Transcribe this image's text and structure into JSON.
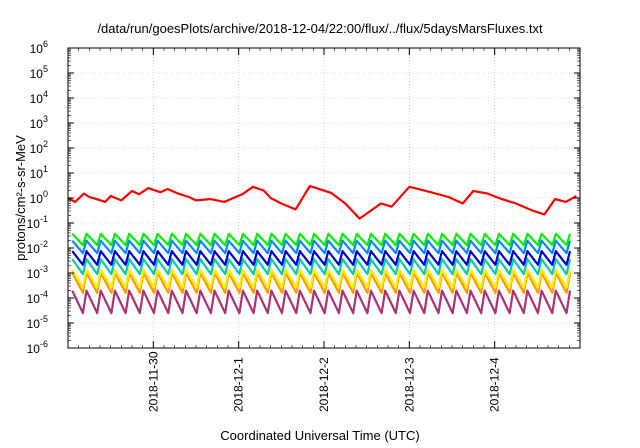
{
  "chart_data": {
    "type": "line",
    "title": "/data/run/goesPlots/archive/2018-12-04/22:00/flux/../flux/5daysMarsFluxes.txt",
    "xlabel": "Coordinated Universal Time (UTC)",
    "ylabel": "protons/cm²-s-sr-MeV",
    "y_scale": "log",
    "ylim": [
      1e-06,
      1000000.0
    ],
    "xlim": [
      "2018-11-29 00:00",
      "2018-12-05 00:00"
    ],
    "x_ticks": [
      "2018-11-30",
      "2018-12-1",
      "2018-12-2",
      "2018-12-3",
      "2018-12-4"
    ],
    "y_ticks": [
      {
        "base": "10",
        "exp": "-6"
      },
      {
        "base": "10",
        "exp": "-5"
      },
      {
        "base": "10",
        "exp": "-4"
      },
      {
        "base": "10",
        "exp": "-3"
      },
      {
        "base": "10",
        "exp": "-2"
      },
      {
        "base": "10",
        "exp": "-1"
      },
      {
        "base": "10",
        "exp": "0"
      },
      {
        "base": "10",
        "exp": "1"
      },
      {
        "base": "10",
        "exp": "2"
      },
      {
        "base": "10",
        "exp": "3"
      },
      {
        "base": "10",
        "exp": "4"
      },
      {
        "base": "10",
        "exp": "5"
      },
      {
        "base": "10",
        "exp": "6"
      }
    ],
    "grid": true,
    "series": [
      {
        "color": "#ff0000",
        "x": [
          "2018-11-29 00:00",
          "2018-11-29 02:00",
          "2018-11-29 04:30",
          "2018-11-29 06:00",
          "2018-11-29 08:00",
          "2018-11-29 10:30",
          "2018-11-29 12:00",
          "2018-11-29 15:00",
          "2018-11-29 18:00",
          "2018-11-29 20:00",
          "2018-11-29 22:30",
          "2018-11-30 02:00",
          "2018-11-30 04:00",
          "2018-11-30 07:00",
          "2018-11-30 10:00",
          "2018-11-30 12:00",
          "2018-11-30 16:00",
          "2018-11-30 20:00",
          "2018-12-01 01:00",
          "2018-12-01 04:00",
          "2018-12-01 07:00",
          "2018-12-01 09:00",
          "2018-12-01 12:00",
          "2018-12-01 16:00",
          "2018-12-01 20:00",
          "2018-12-01 23:00",
          "2018-12-02 02:00",
          "2018-12-02 06:00",
          "2018-12-02 10:00",
          "2018-12-02 16:00",
          "2018-12-02 19:00",
          "2018-12-03 00:00",
          "2018-12-03 03:00",
          "2018-12-03 06:00",
          "2018-12-03 11:00",
          "2018-12-03 15:00",
          "2018-12-03 18:00",
          "2018-12-03 22:00",
          "2018-12-04 02:00",
          "2018-12-04 06:00",
          "2018-12-04 11:00",
          "2018-12-04 14:00",
          "2018-12-04 17:00",
          "2018-12-04 20:00",
          "2018-12-04 23:00"
        ],
        "y": [
          1.0,
          0.7,
          1.5,
          1.1,
          0.9,
          0.7,
          1.2,
          0.8,
          1.9,
          1.4,
          2.5,
          1.7,
          2.3,
          1.5,
          1.1,
          0.8,
          0.9,
          0.7,
          1.4,
          2.8,
          2.0,
          1.0,
          0.6,
          0.35,
          3.0,
          2.2,
          1.6,
          0.6,
          0.15,
          0.6,
          0.45,
          2.8,
          2.2,
          1.7,
          1.1,
          0.6,
          1.9,
          1.5,
          0.9,
          0.6,
          0.3,
          0.22,
          0.9,
          0.7,
          1.2
        ]
      },
      {
        "color": "#00ee00",
        "base": 0.022,
        "amp": 0.45,
        "per_day": 6
      },
      {
        "color": "#0088ff",
        "base": 0.011,
        "amp": 0.5,
        "per_day": 6
      },
      {
        "color": "#0000cc",
        "base": 0.004,
        "amp": 0.55,
        "per_day": 6
      },
      {
        "color": "#00ccaa",
        "base": 0.0018,
        "amp": 0.6,
        "per_day": 6
      },
      {
        "color": "#ffee00",
        "base": 0.0006,
        "amp": 0.7,
        "per_day": 6
      },
      {
        "color": "#ff9900",
        "base": 0.0004,
        "amp": 0.8,
        "per_day": 6
      },
      {
        "color": "#aa3377",
        "base": 7e-05,
        "amp": 0.9,
        "per_day": 6
      }
    ]
  }
}
